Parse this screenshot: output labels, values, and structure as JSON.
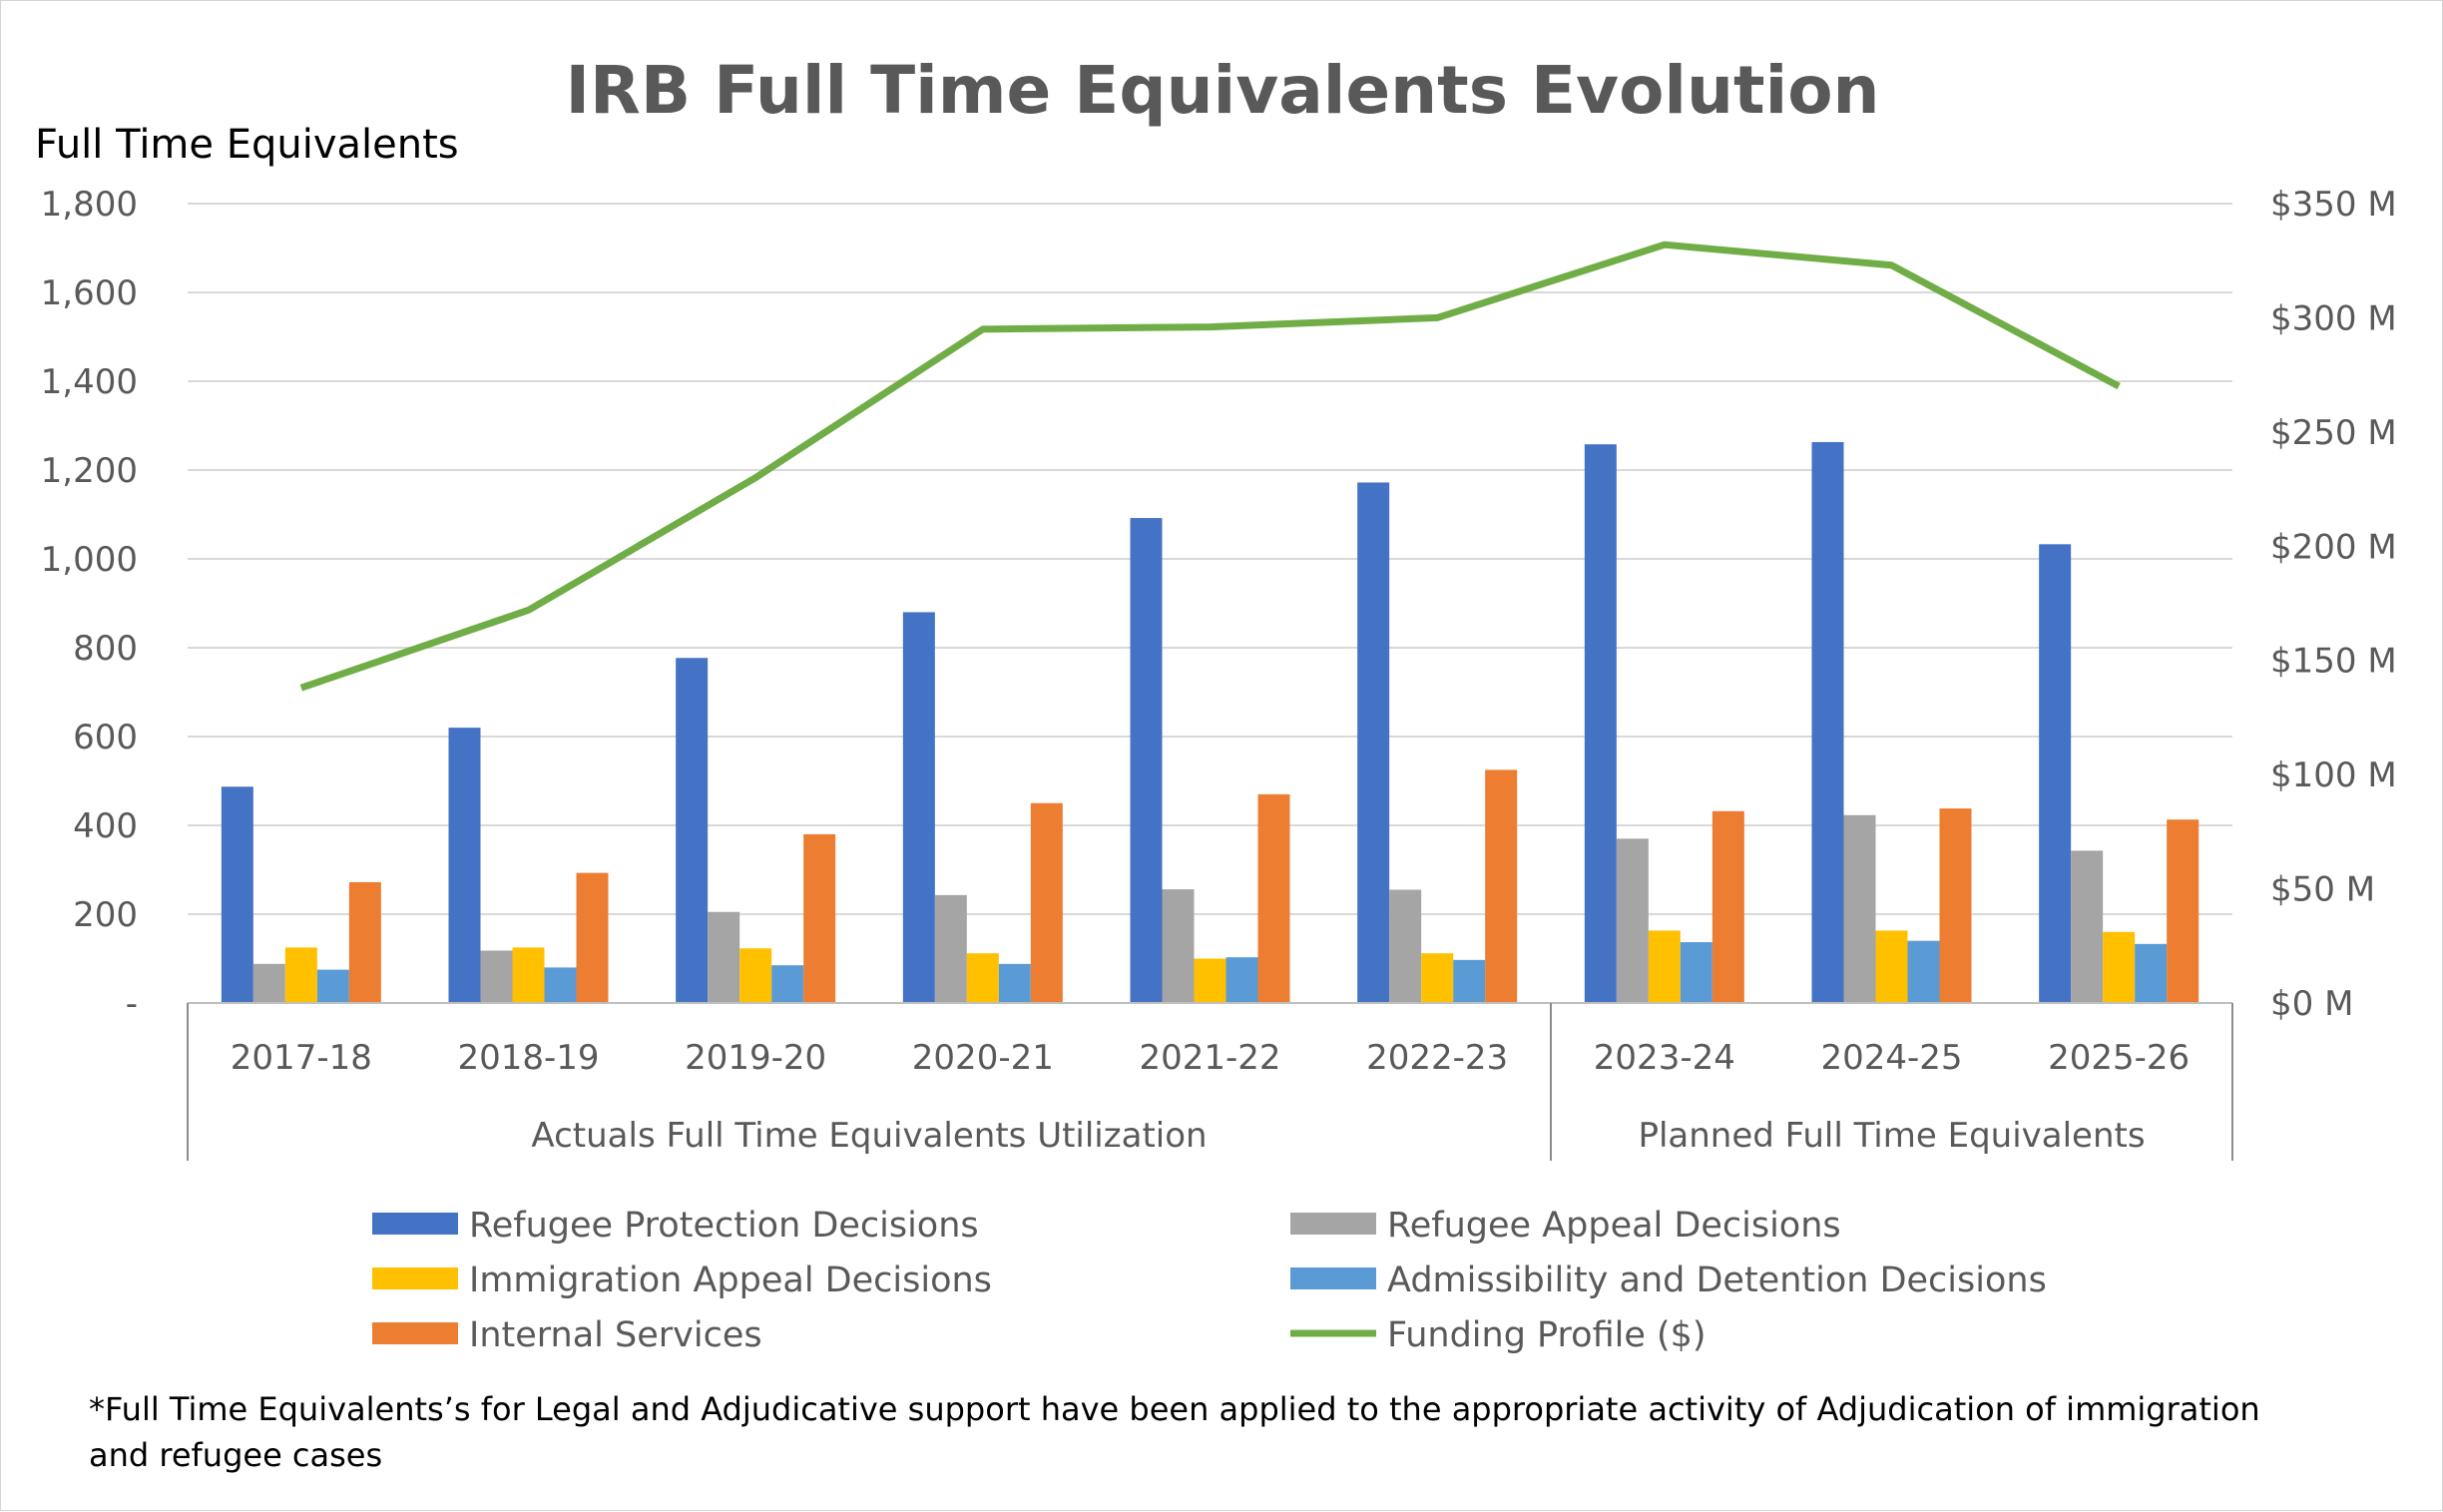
{
  "chart_data": {
    "type": "bar",
    "title": "IRB Full Time Equivalents Evolution",
    "ylabel": "Full Time Equivalents",
    "ylim": [
      0,
      1800
    ],
    "y_ticks": [
      "-",
      "200",
      "400",
      "600",
      "800",
      "1,000",
      "1,200",
      "1,400",
      "1,600",
      "1,800"
    ],
    "y2lim": [
      0,
      350
    ],
    "y2_ticks": [
      "$0 M",
      "$50 M",
      "$100 M",
      "$150 M",
      "$200 M",
      "$250 M",
      "$300 M",
      "$350 M"
    ],
    "categories": [
      "2017-18",
      "2018-19",
      "2019-20",
      "2020-21",
      "2021-22",
      "2022-23",
      "2023-24",
      "2024-25",
      "2025-26"
    ],
    "groups": [
      {
        "label": "Actuals Full Time Equivalents Utilization",
        "count": 6
      },
      {
        "label": "Planned Full Time Equivalents",
        "count": 3
      }
    ],
    "series": [
      {
        "name": "Refugee Protection Decisions",
        "color": "#4472c4",
        "values": [
          487,
          620,
          777,
          880,
          1092,
          1172,
          1258,
          1263,
          1033
        ]
      },
      {
        "name": "Refugee Appeal Decisions",
        "color": "#a5a5a5",
        "values": [
          88,
          118,
          205,
          243,
          256,
          255,
          370,
          423,
          343
        ]
      },
      {
        "name": "Immigration Appeal Decisions",
        "color": "#ffc000",
        "values": [
          125,
          125,
          123,
          112,
          100,
          112,
          163,
          163,
          160
        ]
      },
      {
        "name": "Admissibility and Detention Decisions",
        "color": "#5b9bd5",
        "values": [
          75,
          80,
          85,
          88,
          103,
          97,
          137,
          140,
          133
        ]
      },
      {
        "name": "Internal Services",
        "color": "#ed7d31",
        "values": [
          272,
          293,
          380,
          450,
          470,
          525,
          432,
          438,
          413
        ]
      }
    ],
    "line_series": {
      "name": "Funding Profile ($)",
      "color": "#70ad47",
      "axis": "secondary",
      "values": [
        138,
        172,
        230,
        295,
        296,
        300,
        332,
        323,
        270
      ]
    }
  },
  "footnote": "*Full Time Equivalents’s for Legal and Adjudicative support have been applied to the appropriate activity of Adjudication of immigration and refugee cases"
}
